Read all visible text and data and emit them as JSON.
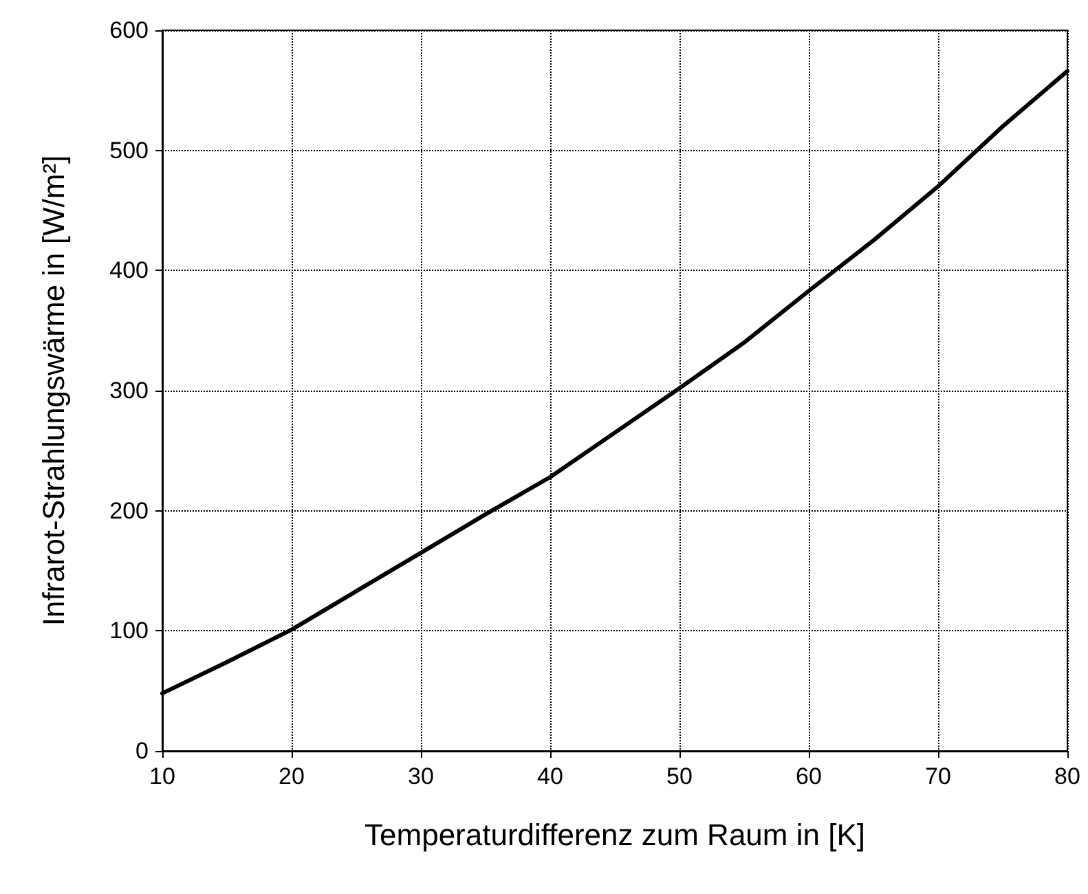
{
  "chart_data": {
    "type": "line",
    "xlabel": "Temperaturdifferenz zum Raum in [K]",
    "ylabel": "Infrarot-Strahlungswärme in [W/m²]",
    "x": [
      10,
      15,
      20,
      25,
      30,
      35,
      40,
      45,
      50,
      55,
      60,
      65,
      70,
      75,
      80
    ],
    "series": [
      {
        "color": "#000000",
        "values": [
          48,
          74,
          101,
          133,
          165,
          197,
          228,
          265,
          302,
          340,
          383,
          425,
          470,
          520,
          566
        ]
      }
    ],
    "xlim": [
      10,
      80
    ],
    "xticks": [
      10,
      20,
      30,
      40,
      50,
      60,
      70,
      80
    ],
    "ylim": [
      0,
      600
    ],
    "yticks": [
      0,
      100,
      200,
      300,
      400,
      500,
      600
    ],
    "grid": true,
    "marker": "none",
    "line_style": "solid"
  }
}
